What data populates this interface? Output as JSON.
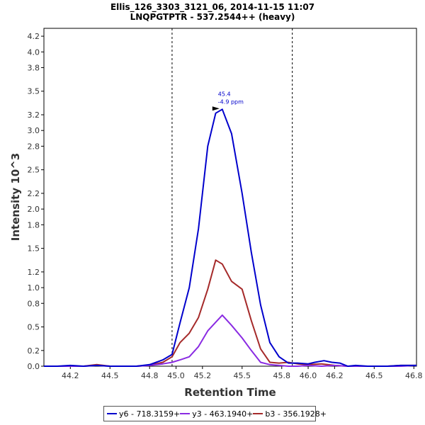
{
  "chart_data": {
    "type": "line",
    "title": "Ellis_126_3303_3121_06, 2014-11-15 11:07",
    "subtitle": "LNQPGTPTR - 537.2544++ (heavy)",
    "xlabel": "Retention Time",
    "ylabel": "Intensity 10^3",
    "xlim": [
      44.0,
      46.82
    ],
    "ylim": [
      0,
      4.3
    ],
    "xticks": [
      44.2,
      44.5,
      44.8,
      45.0,
      45.2,
      45.5,
      45.8,
      46.0,
      46.2,
      46.5,
      46.8
    ],
    "yticks": [
      0.0,
      0.2,
      0.5,
      0.8,
      1.0,
      1.2,
      1.5,
      1.8,
      2.0,
      2.2,
      2.5,
      2.8,
      3.0,
      3.2,
      3.5,
      3.8,
      4.0,
      4.2
    ],
    "xtick_labels": [
      "44.2",
      "44.5",
      "44.8",
      "45.0",
      "45.2",
      "45.5",
      "45.8",
      "46.0",
      "46.2",
      "46.5",
      "46.8"
    ],
    "ytick_labels": [
      "0.0",
      "0.2",
      "0.5",
      "0.8",
      "1.0",
      "1.2",
      "1.5",
      "1.8",
      "2.0",
      "2.2",
      "2.5",
      "2.8",
      "3.0",
      "3.2",
      "3.5",
      "3.8",
      "4.0",
      "4.2"
    ],
    "boundaries": [
      44.97,
      45.88
    ],
    "annotation": {
      "x": 45.35,
      "y": 3.27,
      "line1": "45.4",
      "line2": "-4.9 ppm"
    },
    "series": [
      {
        "name": "y6 - 718.3159+",
        "color": "#0000cc",
        "x": [
          44.0,
          44.1,
          44.2,
          44.3,
          44.4,
          44.5,
          44.6,
          44.7,
          44.8,
          44.85,
          44.9,
          44.97,
          45.03,
          45.1,
          45.17,
          45.24,
          45.3,
          45.35,
          45.42,
          45.5,
          45.57,
          45.64,
          45.71,
          45.78,
          45.85,
          45.92,
          46.0,
          46.05,
          46.12,
          46.18,
          46.24,
          46.3,
          46.36,
          46.45,
          46.5,
          46.6,
          46.7,
          46.82
        ],
        "y": [
          0.0,
          0.0,
          0.01,
          0.0,
          0.01,
          0.0,
          0.0,
          0.0,
          0.02,
          0.05,
          0.08,
          0.15,
          0.55,
          1.0,
          1.75,
          2.8,
          3.22,
          3.27,
          2.96,
          2.2,
          1.45,
          0.78,
          0.3,
          0.12,
          0.04,
          0.04,
          0.03,
          0.05,
          0.07,
          0.05,
          0.04,
          0.0,
          0.01,
          0.0,
          0.0,
          0.0,
          0.01,
          0.01
        ]
      },
      {
        "name": "y3 - 463.1940+",
        "color": "#8a2be2",
        "x": [
          44.0,
          44.1,
          44.2,
          44.3,
          44.4,
          44.5,
          44.6,
          44.7,
          44.8,
          44.9,
          44.97,
          45.03,
          45.1,
          45.17,
          45.24,
          45.3,
          45.35,
          45.42,
          45.5,
          45.57,
          45.64,
          45.71,
          45.78,
          45.85,
          45.92,
          46.0,
          46.1,
          46.2,
          46.3,
          46.4,
          46.5,
          46.6,
          46.7,
          46.82
        ],
        "y": [
          0.0,
          0.0,
          0.0,
          0.0,
          0.01,
          0.0,
          0.0,
          0.0,
          0.01,
          0.03,
          0.05,
          0.08,
          0.12,
          0.25,
          0.45,
          0.56,
          0.65,
          0.52,
          0.36,
          0.2,
          0.05,
          0.02,
          0.01,
          0.0,
          0.0,
          0.01,
          0.0,
          0.01,
          0.0,
          0.0,
          0.0,
          0.0,
          0.0,
          0.01
        ]
      },
      {
        "name": "b3 - 356.1928+",
        "color": "#a52a2a",
        "x": [
          44.0,
          44.1,
          44.2,
          44.3,
          44.4,
          44.5,
          44.6,
          44.7,
          44.8,
          44.9,
          44.97,
          45.03,
          45.1,
          45.17,
          45.24,
          45.3,
          45.35,
          45.42,
          45.5,
          45.57,
          45.64,
          45.71,
          45.78,
          45.85,
          45.92,
          46.0,
          46.1,
          46.2,
          46.3,
          46.4,
          46.5,
          46.6,
          46.7,
          46.82
        ],
        "y": [
          0.0,
          0.0,
          0.0,
          0.0,
          0.02,
          0.0,
          0.0,
          0.0,
          0.01,
          0.05,
          0.12,
          0.3,
          0.42,
          0.62,
          0.98,
          1.35,
          1.3,
          1.08,
          0.98,
          0.58,
          0.22,
          0.05,
          0.04,
          0.05,
          0.03,
          0.02,
          0.03,
          0.01,
          0.0,
          0.0,
          0.0,
          0.0,
          0.01,
          0.01
        ]
      }
    ]
  }
}
